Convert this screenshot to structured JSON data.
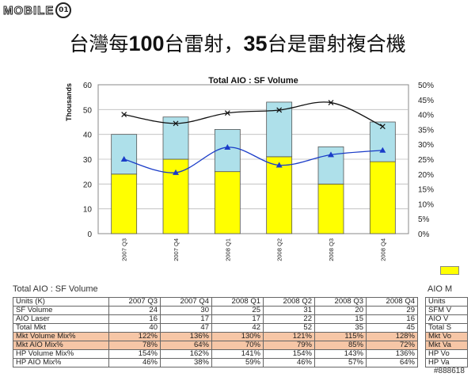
{
  "logo": {
    "text": "MOBILE",
    "mark": "01"
  },
  "slide_title": {
    "pre": "台灣每",
    "num1": "100",
    "mid": "台雷射，",
    "num2": "35",
    "post": "台是雷射複合機"
  },
  "chart_data": {
    "type": "bar",
    "title": "Total AIO : SF Volume",
    "ylabel": "Thousands",
    "categories": [
      "2007 Q3",
      "2007 Q4",
      "2008 Q1",
      "2008 Q2",
      "2008 Q3",
      "2008 Q4"
    ],
    "ylim": [
      0,
      60
    ],
    "yticks": [
      0,
      10,
      20,
      30,
      40,
      50,
      60
    ],
    "y2lim": [
      0,
      50
    ],
    "y2ticks": [
      "0%",
      "5%",
      "10%",
      "15%",
      "20%",
      "25%",
      "30%",
      "35%",
      "40%",
      "45%",
      "50%"
    ],
    "series": [
      {
        "values": [
          24,
          30,
          25,
          31,
          20,
          29
        ],
        "kind": "bar",
        "color": "#ffff00"
      },
      {
        "values": [
          16,
          17,
          17,
          22,
          15,
          16
        ],
        "kind": "bar",
        "color": "#aee0ea"
      },
      {
        "values": [
          25,
          20.5,
          29,
          23,
          26.5,
          28
        ],
        "kind": "line",
        "axis": "right",
        "color": "#1a3cc8",
        "marker": "triangle"
      },
      {
        "values": [
          40,
          37,
          40.5,
          41.5,
          44,
          36
        ],
        "kind": "line",
        "axis": "right",
        "color": "#111111",
        "marker": "x"
      }
    ],
    "grid": true
  },
  "table": {
    "title": "Total AIO : SF Volume",
    "headers": [
      "Units (K)",
      "2007 Q3",
      "2007 Q4",
      "2008 Q1",
      "2008 Q2",
      "2008 Q3",
      "2008 Q4"
    ],
    "rows": [
      {
        "label": "SF Volume",
        "values": [
          "24",
          "30",
          "25",
          "31",
          "20",
          "29"
        ],
        "highlight": false
      },
      {
        "label": "AIO Laser",
        "values": [
          "16",
          "17",
          "17",
          "22",
          "15",
          "16"
        ],
        "highlight": false
      },
      {
        "label": "Total Mkt",
        "values": [
          "40",
          "47",
          "42",
          "52",
          "35",
          "45"
        ],
        "highlight": false
      },
      {
        "label": "Mkt Volume Mix%",
        "values": [
          "122%",
          "136%",
          "130%",
          "121%",
          "115%",
          "128%"
        ],
        "highlight": true
      },
      {
        "label": "Mkt AIO Mix%",
        "values": [
          "78%",
          "64%",
          "70%",
          "79%",
          "85%",
          "72%"
        ],
        "highlight": true
      },
      {
        "label": "HP Volume Mix%",
        "values": [
          "154%",
          "162%",
          "141%",
          "154%",
          "143%",
          "136%"
        ],
        "highlight": false
      },
      {
        "label": "HP AIO Mix%",
        "values": [
          "46%",
          "38%",
          "59%",
          "46%",
          "57%",
          "64%"
        ],
        "highlight": false
      }
    ],
    "side_title": "AIO M",
    "side_rows": [
      "Units",
      "SFM V",
      "AIO V",
      "Total S",
      "Mkt Vo",
      "Mkt Va",
      "HP Vo",
      "HP Va"
    ]
  },
  "watermark": "#888618"
}
